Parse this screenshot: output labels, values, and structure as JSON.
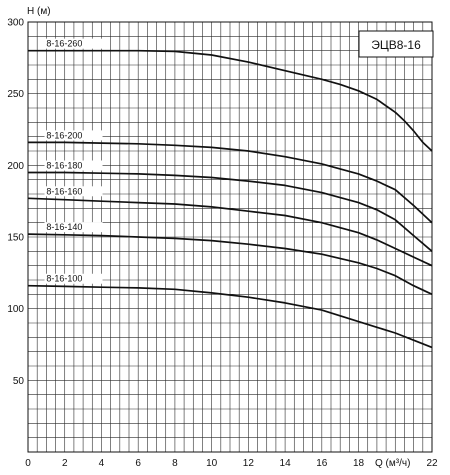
{
  "chart_data": {
    "type": "line",
    "title": "ЭЦВ8-16",
    "xlabel": "Q (м³/ч)",
    "ylabel": "H (м)",
    "xlim": [
      0,
      22
    ],
    "ylim": [
      0,
      300
    ],
    "x_ticks": [
      0,
      2,
      4,
      6,
      8,
      10,
      12,
      14,
      16,
      18,
      22
    ],
    "y_ticks": [
      50,
      100,
      150,
      200,
      250,
      300
    ],
    "grid": true,
    "series": [
      {
        "name": "8-16-260",
        "x": [
          0,
          2,
          4,
          6,
          8,
          10,
          12,
          14,
          16,
          17,
          18,
          19,
          20,
          20.5,
          21,
          21.5,
          22
        ],
        "values": [
          280,
          280,
          280,
          280,
          279.5,
          277,
          272,
          266,
          260,
          256.5,
          252,
          246,
          237,
          231,
          224,
          216,
          210
        ]
      },
      {
        "name": "8-16-200",
        "x": [
          0,
          2,
          4,
          6,
          8,
          10,
          12,
          14,
          16,
          18,
          19,
          20,
          21,
          22
        ],
        "values": [
          216,
          216,
          215.5,
          215,
          214,
          212.5,
          210,
          206,
          201,
          194,
          189,
          183,
          172,
          160
        ]
      },
      {
        "name": "8-16-180",
        "x": [
          0,
          2,
          4,
          6,
          8,
          10,
          12,
          14,
          16,
          18,
          19,
          20,
          21,
          22
        ],
        "values": [
          195,
          195,
          194.5,
          194,
          193,
          191.5,
          189,
          186,
          181,
          174,
          169,
          162,
          151,
          140
        ]
      },
      {
        "name": "8-16-160",
        "x": [
          0,
          2,
          4,
          6,
          8,
          10,
          12,
          14,
          16,
          18,
          19,
          20,
          21,
          22
        ],
        "values": [
          177,
          176,
          175,
          174,
          173,
          171,
          168,
          165,
          160,
          153,
          148,
          142,
          136,
          130
        ]
      },
      {
        "name": "8-16-140",
        "x": [
          0,
          2,
          4,
          6,
          8,
          10,
          12,
          14,
          16,
          18,
          19,
          20,
          21,
          22
        ],
        "values": [
          152,
          151.5,
          151,
          150,
          149,
          147.5,
          145,
          142,
          138,
          132,
          128,
          123,
          116,
          110
        ]
      },
      {
        "name": "8-16-100",
        "x": [
          0,
          2,
          4,
          6,
          8,
          10,
          12,
          14,
          16,
          18,
          19,
          20,
          21,
          22
        ],
        "values": [
          116,
          115.5,
          115,
          114.5,
          113.5,
          111,
          108,
          104,
          99,
          91,
          87,
          83,
          78,
          73
        ]
      }
    ]
  }
}
